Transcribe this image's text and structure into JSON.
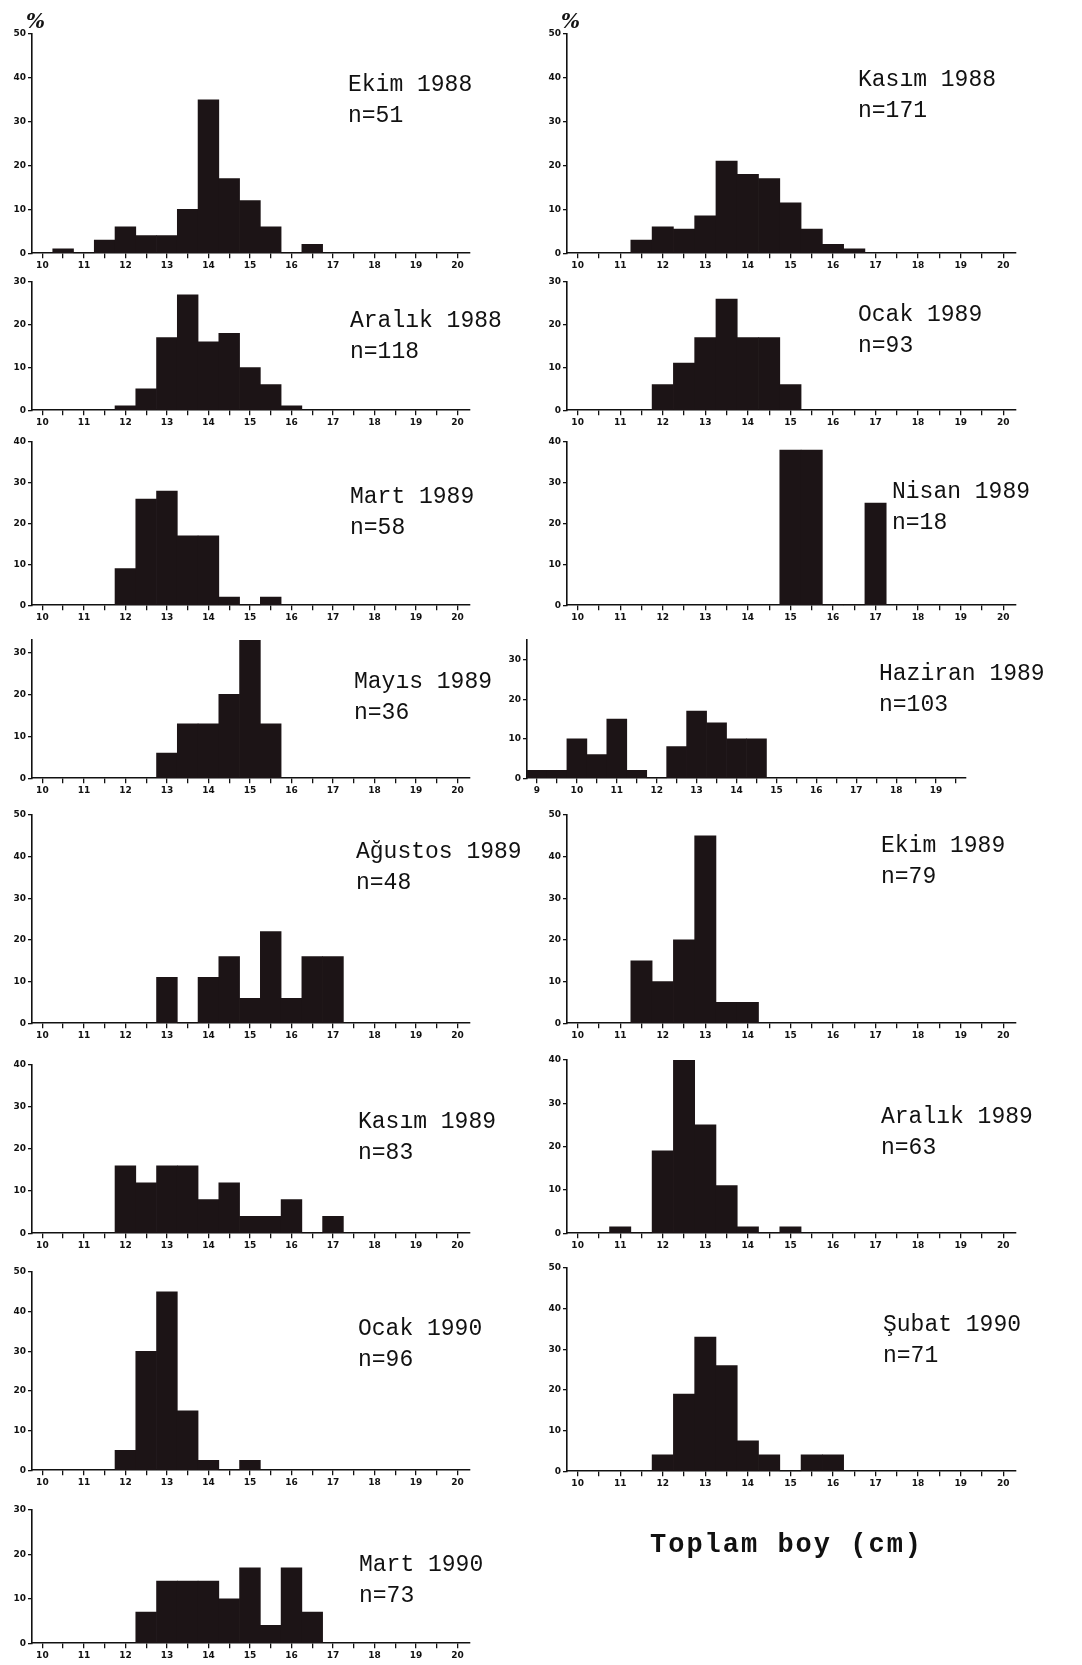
{
  "chart_data": [
    {
      "type": "histogram",
      "title": "Ekim 1988",
      "subtitle": "n=51",
      "ylabel": "%",
      "color": "#1c1416",
      "bins": [
        10.25,
        10.75,
        11.25,
        11.75,
        12.25,
        12.75,
        13.25,
        13.75,
        14.25,
        14.75,
        15.25,
        15.75,
        16.25,
        16.75
      ],
      "values": [
        1,
        0,
        3,
        6,
        4,
        4,
        10,
        35,
        17,
        12,
        6,
        0,
        2
      ],
      "xlim": [
        9.75,
        20.3
      ],
      "xticks": [
        10,
        {
          "value": 10.5,
          "label": null
        },
        11,
        {
          "value": 11.5,
          "label": null
        },
        12,
        {
          "value": 12.5,
          "label": null
        },
        13,
        {
          "value": 13.5,
          "label": null
        },
        14,
        {
          "value": 14.5,
          "label": null
        },
        15,
        {
          "value": 15.5,
          "label": null
        },
        16,
        {
          "value": 16.5,
          "label": null
        },
        17,
        {
          "value": 17.5,
          "label": null
        },
        18,
        {
          "value": 18.5,
          "label": null
        },
        19,
        {
          "value": 19.5,
          "label": null
        },
        20
      ],
      "ylim": [
        0,
        50
      ],
      "yticks": [
        0,
        10,
        20,
        30,
        40,
        50
      ]
    },
    {
      "type": "histogram",
      "title": "Kasım 1988",
      "subtitle": "n=171",
      "ylabel": "%",
      "color": "#1c1416",
      "bins": [
        11.25,
        11.75,
        12.25,
        12.75,
        13.25,
        13.75,
        14.25,
        14.75,
        15.25,
        15.75,
        16.25,
        16.75
      ],
      "values": [
        3,
        6,
        5.5,
        8.5,
        21,
        18,
        17,
        11.5,
        5.5,
        2,
        1
      ],
      "xlim": [
        9.75,
        20.3
      ],
      "xticks": [
        10,
        {
          "value": 10.5,
          "label": null
        },
        11,
        {
          "value": 11.5,
          "label": null
        },
        12,
        {
          "value": 12.5,
          "label": null
        },
        13,
        {
          "value": 13.5,
          "label": null
        },
        14,
        {
          "value": 14.5,
          "label": null
        },
        15,
        {
          "value": 15.5,
          "label": null
        },
        16,
        {
          "value": 16.5,
          "label": null
        },
        17,
        {
          "value": 17.5,
          "label": null
        },
        18,
        {
          "value": 18.5,
          "label": null
        },
        19,
        {
          "value": 19.5,
          "label": null
        },
        20
      ],
      "ylim": [
        0,
        50
      ],
      "yticks": [
        0,
        10,
        20,
        30,
        40,
        50
      ]
    },
    {
      "type": "histogram",
      "title": "Aralık 1988",
      "subtitle": "n=118",
      "color": "#1c1416",
      "bins": [
        11.75,
        12.25,
        12.75,
        13.25,
        13.75,
        14.25,
        14.75,
        15.25,
        15.75,
        16.25
      ],
      "values": [
        1,
        5,
        17,
        27,
        16,
        18,
        10,
        6,
        1
      ],
      "xlim": [
        9.75,
        20.3
      ],
      "xticks": [
        10,
        {
          "value": 10.5,
          "label": null
        },
        11,
        {
          "value": 11.5,
          "label": null
        },
        12,
        {
          "value": 12.5,
          "label": null
        },
        13,
        {
          "value": 13.5,
          "label": null
        },
        14,
        {
          "value": 14.5,
          "label": null
        },
        15,
        {
          "value": 15.5,
          "label": null
        },
        16,
        {
          "value": 16.5,
          "label": null
        },
        17,
        {
          "value": 17.5,
          "label": null
        },
        18,
        {
          "value": 18.5,
          "label": null
        },
        19,
        {
          "value": 19.5,
          "label": null
        },
        20
      ],
      "ylim": [
        0,
        30
      ],
      "yticks": [
        0,
        10,
        20,
        30
      ]
    },
    {
      "type": "histogram",
      "title": "Ocak 1989",
      "subtitle": "n=93",
      "color": "#1c1416",
      "bins": [
        11.75,
        12.25,
        12.75,
        13.25,
        13.75,
        14.25,
        14.75,
        15.25
      ],
      "values": [
        6,
        11,
        17,
        26,
        17,
        17,
        6
      ],
      "xlim": [
        9.75,
        20.3
      ],
      "xticks": [
        10,
        {
          "value": 10.5,
          "label": null
        },
        11,
        {
          "value": 11.5,
          "label": null
        },
        12,
        {
          "value": 12.5,
          "label": null
        },
        13,
        {
          "value": 13.5,
          "label": null
        },
        14,
        {
          "value": 14.5,
          "label": null
        },
        15,
        {
          "value": 15.5,
          "label": null
        },
        16,
        {
          "value": 16.5,
          "label": null
        },
        17,
        {
          "value": 17.5,
          "label": null
        },
        18,
        {
          "value": 18.5,
          "label": null
        },
        19,
        {
          "value": 19.5,
          "label": null
        },
        20
      ],
      "ylim": [
        0,
        30
      ],
      "yticks": [
        0,
        10,
        20,
        30
      ]
    },
    {
      "type": "histogram",
      "title": "Mart 1989",
      "subtitle": "n=58",
      "color": "#1c1416",
      "bins": [
        11.75,
        12.25,
        12.75,
        13.25,
        13.75,
        14.25,
        14.75,
        15.25,
        15.75
      ],
      "values": [
        9,
        26,
        28,
        17,
        17,
        2,
        0,
        2
      ],
      "xlim": [
        9.75,
        20.3
      ],
      "xticks": [
        10,
        {
          "value": 10.5,
          "label": null
        },
        11,
        {
          "value": 11.5,
          "label": null
        },
        12,
        {
          "value": 12.5,
          "label": null
        },
        13,
        {
          "value": 13.5,
          "label": null
        },
        14,
        {
          "value": 14.5,
          "label": null
        },
        15,
        {
          "value": 15.5,
          "label": null
        },
        16,
        {
          "value": 16.5,
          "label": null
        },
        17,
        {
          "value": 17.5,
          "label": null
        },
        18,
        {
          "value": 18.5,
          "label": null
        },
        19,
        {
          "value": 19.5,
          "label": null
        },
        20
      ],
      "ylim": [
        0,
        40
      ],
      "yticks": [
        0,
        10,
        20,
        30,
        40
      ]
    },
    {
      "type": "histogram",
      "title": "Nisan 1989",
      "subtitle": "n=18",
      "color": "#1c1416",
      "bins": [
        14.75,
        15.25,
        15.75,
        16.25,
        16.75,
        17.25
      ],
      "values": [
        38,
        38,
        0,
        0,
        25
      ],
      "xlim": [
        9.75,
        20.3
      ],
      "xticks": [
        10,
        {
          "value": 10.5,
          "label": null
        },
        11,
        {
          "value": 11.5,
          "label": null
        },
        12,
        {
          "value": 12.5,
          "label": null
        },
        13,
        {
          "value": 13.5,
          "label": null
        },
        14,
        {
          "value": 14.5,
          "label": null
        },
        15,
        {
          "value": 15.5,
          "label": null
        },
        16,
        {
          "value": 16.5,
          "label": null
        },
        17,
        {
          "value": 17.5,
          "label": null
        },
        18,
        {
          "value": 18.5,
          "label": null
        },
        19,
        {
          "value": 19.5,
          "label": null
        },
        20
      ],
      "ylim": [
        0,
        40
      ],
      "yticks": [
        0,
        10,
        20,
        30,
        40
      ]
    },
    {
      "type": "histogram",
      "title": "Mayıs 1989",
      "subtitle": "n=36",
      "color": "#1c1416",
      "bins": [
        12.75,
        13.25,
        13.75,
        14.25,
        14.75,
        15.25,
        15.75
      ],
      "values": [
        6,
        13,
        13,
        20,
        33,
        13
      ],
      "xlim": [
        9.75,
        20.3
      ],
      "xticks": [
        10,
        {
          "value": 10.5,
          "label": null
        },
        11,
        {
          "value": 11.5,
          "label": null
        },
        12,
        {
          "value": 12.5,
          "label": null
        },
        13,
        {
          "value": 13.5,
          "label": null
        },
        14,
        {
          "value": 14.5,
          "label": null
        },
        15,
        {
          "value": 15.5,
          "label": null
        },
        16,
        {
          "value": 16.5,
          "label": null
        },
        17,
        {
          "value": 17.5,
          "label": null
        },
        18,
        {
          "value": 18.5,
          "label": null
        },
        19,
        {
          "value": 19.5,
          "label": null
        },
        20
      ],
      "ylim": [
        0,
        33
      ],
      "yticks": [
        0,
        10,
        20,
        30
      ]
    },
    {
      "type": "histogram",
      "title": "Haziran 1989",
      "subtitle": "n=103",
      "color": "#1c1416",
      "bins": [
        8.75,
        9.25,
        9.75,
        10.25,
        10.75,
        11.25,
        11.75,
        12.25,
        12.75,
        13.25,
        13.75,
        14.25,
        14.75
      ],
      "values": [
        2,
        2,
        10,
        6,
        15,
        2,
        0,
        8,
        17,
        14,
        10,
        10
      ],
      "xlim": [
        8.75,
        19.75
      ],
      "xticks": [
        9,
        {
          "value": 9.5,
          "label": null
        },
        10,
        {
          "value": 10.5,
          "label": null
        },
        11,
        {
          "value": 11.5,
          "label": null
        },
        12,
        {
          "value": 12.5,
          "label": null
        },
        13,
        {
          "value": 13.5,
          "label": null
        },
        14,
        {
          "value": 14.5,
          "label": null
        },
        15,
        {
          "value": 15.5,
          "label": null
        },
        16,
        {
          "value": 16.5,
          "label": null
        },
        17,
        {
          "value": 17.5,
          "label": null
        },
        18,
        {
          "value": 18.5,
          "label": null
        },
        19,
        {
          "value": 19.5,
          "label": null
        }
      ],
      "ylim": [
        0,
        35
      ],
      "yticks": [
        0,
        10,
        20,
        30
      ]
    },
    {
      "type": "histogram",
      "title": "Ağustos 1989",
      "subtitle": "n=48",
      "color": "#1c1416",
      "bins": [
        12.75,
        13.25,
        13.75,
        14.25,
        14.75,
        15.25,
        15.75,
        16.25,
        16.75,
        17.25
      ],
      "values": [
        11,
        0,
        11,
        16,
        6,
        22,
        6,
        16,
        16
      ],
      "xlim": [
        9.75,
        20.3
      ],
      "xticks": [
        10,
        {
          "value": 10.5,
          "label": null
        },
        11,
        {
          "value": 11.5,
          "label": null
        },
        12,
        {
          "value": 12.5,
          "label": null
        },
        13,
        {
          "value": 13.5,
          "label": null
        },
        14,
        {
          "value": 14.5,
          "label": null
        },
        15,
        {
          "value": 15.5,
          "label": null
        },
        16,
        {
          "value": 16.5,
          "label": null
        },
        17,
        {
          "value": 17.5,
          "label": null
        },
        18,
        {
          "value": 18.5,
          "label": null
        },
        19,
        {
          "value": 19.5,
          "label": null
        },
        20
      ],
      "ylim": [
        0,
        50
      ],
      "yticks": [
        0,
        10,
        20,
        30,
        40,
        50
      ]
    },
    {
      "type": "histogram",
      "title": "Ekim 1989",
      "subtitle": "n=79",
      "color": "#1c1416",
      "bins": [
        11.25,
        11.75,
        12.25,
        12.75,
        13.25,
        13.75,
        14.25
      ],
      "values": [
        15,
        10,
        20,
        45,
        5,
        5
      ],
      "xlim": [
        9.75,
        20.3
      ],
      "xticks": [
        10,
        {
          "value": 10.5,
          "label": null
        },
        11,
        {
          "value": 11.5,
          "label": null
        },
        12,
        {
          "value": 12.5,
          "label": null
        },
        13,
        {
          "value": 13.5,
          "label": null
        },
        14,
        {
          "value": 14.5,
          "label": null
        },
        15,
        {
          "value": 15.5,
          "label": null
        },
        16,
        {
          "value": 16.5,
          "label": null
        },
        17,
        {
          "value": 17.5,
          "label": null
        },
        18,
        {
          "value": 18.5,
          "label": null
        },
        19,
        {
          "value": 19.5,
          "label": null
        },
        20
      ],
      "ylim": [
        0,
        50
      ],
      "yticks": [
        0,
        10,
        20,
        30,
        40,
        50
      ]
    },
    {
      "type": "histogram",
      "title": "Kasım 1989",
      "subtitle": "n=83",
      "color": "#1c1416",
      "bins": [
        11.75,
        12.25,
        12.75,
        13.25,
        13.75,
        14.25,
        14.75,
        15.25,
        15.75,
        16.25,
        16.75,
        17.25
      ],
      "values": [
        16,
        12,
        16,
        16,
        8,
        12,
        4,
        4,
        8,
        0,
        4
      ],
      "xlim": [
        9.75,
        20.3
      ],
      "xticks": [
        10,
        {
          "value": 10.5,
          "label": null
        },
        11,
        {
          "value": 11.5,
          "label": null
        },
        12,
        {
          "value": 12.5,
          "label": null
        },
        13,
        {
          "value": 13.5,
          "label": null
        },
        14,
        {
          "value": 14.5,
          "label": null
        },
        15,
        {
          "value": 15.5,
          "label": null
        },
        16,
        {
          "value": 16.5,
          "label": null
        },
        17,
        {
          "value": 17.5,
          "label": null
        },
        18,
        {
          "value": 18.5,
          "label": null
        },
        19,
        {
          "value": 19.5,
          "label": null
        },
        20
      ],
      "ylim": [
        0,
        40
      ],
      "yticks": [
        0,
        10,
        20,
        30,
        40
      ]
    },
    {
      "type": "histogram",
      "title": "Aralık 1989",
      "subtitle": "n=63",
      "color": "#1c1416",
      "bins": [
        10.75,
        11.25,
        11.75,
        12.25,
        12.75,
        13.25,
        13.75,
        14.25,
        14.75,
        15.25
      ],
      "values": [
        1.5,
        0,
        19,
        40,
        25,
        11,
        1.5,
        0,
        1.5
      ],
      "xlim": [
        9.75,
        20.3
      ],
      "xticks": [
        10,
        {
          "value": 10.5,
          "label": null
        },
        11,
        {
          "value": 11.5,
          "label": null
        },
        12,
        {
          "value": 12.5,
          "label": null
        },
        13,
        {
          "value": 13.5,
          "label": null
        },
        14,
        {
          "value": 14.5,
          "label": null
        },
        15,
        {
          "value": 15.5,
          "label": null
        },
        16,
        {
          "value": 16.5,
          "label": null
        },
        17,
        {
          "value": 17.5,
          "label": null
        },
        18,
        {
          "value": 18.5,
          "label": null
        },
        19,
        {
          "value": 19.5,
          "label": null
        },
        20
      ],
      "ylim": [
        0,
        40
      ],
      "yticks": [
        0,
        10,
        20,
        30,
        40
      ]
    },
    {
      "type": "histogram",
      "title": "Ocak 1990",
      "subtitle": "n=96",
      "color": "#1c1416",
      "bins": [
        11.75,
        12.25,
        12.75,
        13.25,
        13.75,
        14.25,
        14.75,
        15.25
      ],
      "values": [
        5,
        30,
        45,
        15,
        2.5,
        0,
        2.5
      ],
      "xlim": [
        9.75,
        20.3
      ],
      "xticks": [
        10,
        {
          "value": 10.5,
          "label": null
        },
        11,
        {
          "value": 11.5,
          "label": null
        },
        12,
        {
          "value": 12.5,
          "label": null
        },
        13,
        {
          "value": 13.5,
          "label": null
        },
        14,
        {
          "value": 14.5,
          "label": null
        },
        15,
        {
          "value": 15.5,
          "label": null
        },
        16,
        {
          "value": 16.5,
          "label": null
        },
        17,
        {
          "value": 17.5,
          "label": null
        },
        18,
        {
          "value": 18.5,
          "label": null
        },
        19,
        {
          "value": 19.5,
          "label": null
        },
        20
      ],
      "ylim": [
        0,
        50
      ],
      "yticks": [
        0,
        10,
        20,
        30,
        40,
        50
      ]
    },
    {
      "type": "histogram",
      "title": "Şubat 1990",
      "subtitle": "n=71",
      "color": "#1c1416",
      "bins": [
        11.75,
        12.25,
        12.75,
        13.25,
        13.75,
        14.25,
        14.75,
        15.25,
        15.75,
        16.25
      ],
      "values": [
        4,
        19,
        33,
        26,
        7.5,
        4,
        0,
        4,
        4
      ],
      "xlim": [
        9.75,
        20.3
      ],
      "xticks": [
        10,
        {
          "value": 10.5,
          "label": null
        },
        11,
        {
          "value": 11.5,
          "label": null
        },
        12,
        {
          "value": 12.5,
          "label": null
        },
        13,
        {
          "value": 13.5,
          "label": null
        },
        14,
        {
          "value": 14.5,
          "label": null
        },
        15,
        {
          "value": 15.5,
          "label": null
        },
        16,
        {
          "value": 16.5,
          "label": null
        },
        17,
        {
          "value": 17.5,
          "label": null
        },
        18,
        {
          "value": 18.5,
          "label": null
        },
        19,
        {
          "value": 19.5,
          "label": null
        },
        20
      ],
      "ylim": [
        0,
        50
      ],
      "yticks": [
        0,
        10,
        20,
        30,
        40,
        50
      ]
    },
    {
      "type": "histogram",
      "title": "Mart 1990",
      "subtitle": "n=73",
      "color": "#1c1416",
      "bins": [
        12.25,
        12.75,
        13.25,
        13.75,
        14.25,
        14.75,
        15.25,
        15.75,
        16.25,
        16.75
      ],
      "values": [
        7,
        14,
        14,
        14,
        10,
        17,
        4,
        17,
        7
      ],
      "xlim": [
        9.75,
        20.3
      ],
      "xticks": [
        10,
        {
          "value": 10.5,
          "label": null
        },
        11,
        {
          "value": 11.5,
          "label": null
        },
        12,
        {
          "value": 12.5,
          "label": null
        },
        13,
        {
          "value": 13.5,
          "label": null
        },
        14,
        {
          "value": 14.5,
          "label": null
        },
        15,
        {
          "value": 15.5,
          "label": null
        },
        16,
        {
          "value": 16.5,
          "label": null
        },
        17,
        {
          "value": 17.5,
          "label": null
        },
        18,
        {
          "value": 18.5,
          "label": null
        },
        19,
        {
          "value": 19.5,
          "label": null
        },
        20
      ],
      "ylim": [
        0,
        30
      ],
      "yticks": [
        0,
        10,
        20,
        30
      ]
    },
    {
      "type": "other",
      "title": "Toplam boy (cm)"
    }
  ]
}
